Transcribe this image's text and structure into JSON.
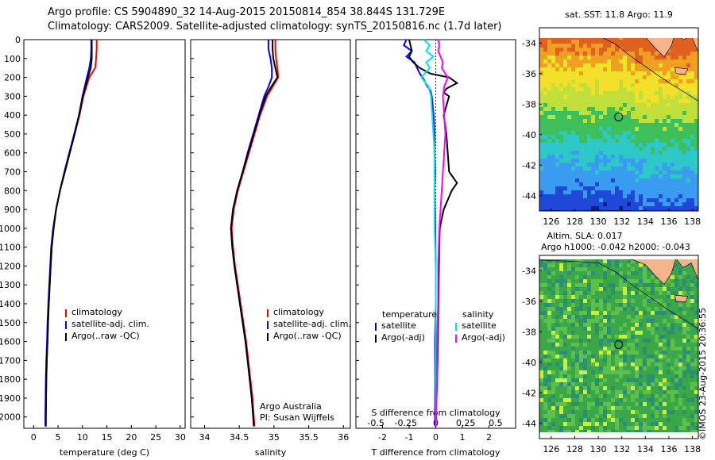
{
  "header": {
    "line1": "Argo profile: CS 5904890_32 14-Aug-2015 20150814_854 38.844S 131.729E",
    "line2": "Climatology: CARS2009. Satellite-adjusted climatology: synTS_20150816.nc (1.7d later)"
  },
  "colors": {
    "climatology": "#ff0000",
    "satellite": "#0000ff",
    "argo": "#000000",
    "satellite_s": "#00e6e6",
    "argo_s": "#ff00ff"
  },
  "chart_data": [
    {
      "type": "line",
      "panel": "temperature",
      "xlabel": "temperature (deg C)",
      "ylabel": "",
      "xlim": [
        -2,
        31
      ],
      "ylim": [
        2060,
        0
      ],
      "xticks": [
        0,
        5,
        10,
        15,
        20,
        25,
        30
      ],
      "yticks": [
        0,
        100,
        200,
        300,
        400,
        500,
        600,
        700,
        800,
        900,
        1000,
        1100,
        1200,
        1300,
        1400,
        1500,
        1600,
        1700,
        1800,
        1900,
        2000
      ],
      "legend": [
        "climatology",
        "satellite-adj. clim.",
        "Argo(..raw -QC)"
      ],
      "series": [
        {
          "name": "climatology",
          "depth": [
            0,
            50,
            100,
            150,
            200,
            300,
            400,
            500,
            600,
            700,
            800,
            900,
            1000,
            1100,
            1200,
            1300,
            1400,
            1500,
            1600,
            1700,
            1800,
            1900,
            2000,
            2050
          ],
          "values": [
            12.9,
            12.9,
            12.8,
            12.6,
            11.4,
            10.2,
            9.4,
            8.4,
            7.4,
            6.4,
            5.4,
            4.6,
            4.1,
            3.7,
            3.5,
            3.3,
            3.1,
            2.95,
            2.85,
            2.7,
            2.6,
            2.55,
            2.5,
            2.5
          ]
        },
        {
          "name": "satellite-adj. clim.",
          "depth": [
            0,
            50,
            100,
            150,
            200,
            300,
            400,
            500,
            600,
            700,
            800,
            900,
            1000,
            1100,
            1200,
            1300,
            1400,
            1500,
            1600,
            1700,
            1800,
            1900,
            2000,
            2050
          ],
          "values": [
            11.8,
            11.8,
            11.7,
            11.4,
            10.9,
            10.0,
            9.3,
            8.3,
            7.3,
            6.3,
            5.4,
            4.6,
            4.0,
            3.6,
            3.4,
            3.2,
            3.0,
            2.85,
            2.75,
            2.6,
            2.5,
            2.45,
            2.4,
            2.4
          ]
        },
        {
          "name": "Argo(..raw -QC)",
          "depth": [
            0,
            50,
            100,
            150,
            200,
            300,
            400,
            500,
            600,
            700,
            800,
            900,
            1000,
            1100,
            1200,
            1300,
            1400,
            1500,
            1600,
            1700,
            1800,
            1900,
            2000,
            2050
          ],
          "values": [
            11.9,
            11.9,
            11.9,
            11.7,
            11.1,
            10.1,
            9.3,
            8.4,
            7.4,
            6.4,
            5.4,
            4.6,
            4.1,
            3.7,
            3.5,
            3.3,
            3.1,
            2.95,
            2.85,
            2.7,
            2.6,
            2.55,
            2.5,
            2.5
          ]
        }
      ]
    },
    {
      "type": "line",
      "panel": "salinity",
      "xlabel": "salinity",
      "ylabel": "",
      "xlim": [
        33.8,
        36.1
      ],
      "ylim": [
        2060,
        0
      ],
      "xticks": [
        34,
        34.5,
        35,
        35.5,
        36
      ],
      "legend": [
        "climatology",
        "satellite-adj. clim.",
        "Argo(..raw -QC)"
      ],
      "annotation": [
        "Argo Australia",
        "PI: Susan Wijffels"
      ],
      "series": [
        {
          "name": "climatology",
          "depth": [
            0,
            50,
            100,
            150,
            200,
            250,
            300,
            400,
            500,
            600,
            700,
            800,
            900,
            1000,
            1100,
            1200,
            1300,
            1400,
            1500,
            1600,
            1700,
            1800,
            1900,
            2000,
            2050
          ],
          "values": [
            35.02,
            35.02,
            35.03,
            35.05,
            35.06,
            34.98,
            34.9,
            34.8,
            34.72,
            34.64,
            34.56,
            34.48,
            34.42,
            34.39,
            34.41,
            34.44,
            34.48,
            34.52,
            34.56,
            34.6,
            34.63,
            34.66,
            34.69,
            34.71,
            34.72
          ]
        },
        {
          "name": "satellite-adj. clim.",
          "depth": [
            0,
            50,
            100,
            150,
            200,
            250,
            300,
            400,
            500,
            600,
            700,
            800,
            900,
            1000,
            1100,
            1200,
            1300,
            1400,
            1500,
            1600,
            1700,
            1800,
            1900,
            2000,
            2050
          ],
          "values": [
            34.92,
            34.92,
            34.95,
            34.97,
            34.97,
            34.92,
            34.86,
            34.78,
            34.7,
            34.62,
            34.55,
            34.47,
            34.41,
            34.38,
            34.4,
            34.43,
            34.47,
            34.51,
            34.55,
            34.59,
            34.62,
            34.65,
            34.68,
            34.7,
            34.71
          ]
        },
        {
          "name": "Argo(..raw -QC)",
          "depth": [
            0,
            50,
            100,
            150,
            200,
            250,
            300,
            400,
            500,
            600,
            700,
            800,
            900,
            1000,
            1100,
            1200,
            1300,
            1400,
            1500,
            1600,
            1700,
            1800,
            1900,
            2000,
            2050
          ],
          "values": [
            34.98,
            34.98,
            34.99,
            35.02,
            35.05,
            34.96,
            34.88,
            34.79,
            34.71,
            34.63,
            34.55,
            34.47,
            34.41,
            34.38,
            34.4,
            34.43,
            34.47,
            34.51,
            34.55,
            34.59,
            34.62,
            34.65,
            34.68,
            34.7,
            34.71
          ]
        }
      ]
    },
    {
      "type": "line",
      "panel": "differences",
      "xlabel": "T difference from climatology",
      "xlabel_top": "S difference from climatology",
      "xlim": [
        -3,
        3
      ],
      "ylim": [
        2060,
        0
      ],
      "xticks": [
        -2,
        -1,
        0,
        1,
        2
      ],
      "xticks_s": [
        "-0.5",
        "-0.25",
        "0",
        "0.25",
        "0.5"
      ],
      "legend_title_t": "temperature",
      "legend_title_s": "salinity",
      "legend_t": [
        "satellite",
        "Argo(-adj)"
      ],
      "legend_s": [
        "satellite",
        "Argo(-adj)"
      ],
      "series": [
        {
          "name": "satellite",
          "kind": "T",
          "depth": [
            0,
            30,
            60,
            90,
            120,
            150,
            180,
            210,
            240,
            270,
            300,
            400,
            500,
            600,
            700,
            800,
            900,
            1000,
            1200,
            1400,
            1600,
            1800,
            2050
          ],
          "values": [
            -1.1,
            -1.2,
            -0.9,
            -1.1,
            -0.8,
            -0.7,
            -0.6,
            -0.45,
            -0.35,
            -0.2,
            -0.15,
            -0.08,
            -0.05,
            -0.05,
            -0.02,
            -0.05,
            -0.03,
            -0.02,
            0,
            0,
            -0.03,
            -0.02,
            -0.03
          ]
        },
        {
          "name": "Argo(-adj)",
          "kind": "T",
          "depth": [
            0,
            30,
            60,
            90,
            120,
            150,
            180,
            200,
            230,
            260,
            280,
            300,
            400,
            500,
            600,
            700,
            760,
            800,
            900,
            1000,
            1200,
            1400,
            1600,
            1800,
            2050
          ],
          "values": [
            -1.0,
            -0.95,
            -0.9,
            -1.0,
            -0.85,
            -0.6,
            -0.2,
            0.5,
            0.8,
            0.4,
            0.3,
            0.5,
            0.3,
            0.4,
            0.45,
            0.5,
            0.8,
            0.6,
            0.3,
            0.15,
            0.12,
            0.1,
            0.08,
            0.05,
            0.0
          ]
        },
        {
          "name": "satellite",
          "kind": "S",
          "depth": [
            0,
            30,
            60,
            90,
            120,
            150,
            200,
            250,
            300,
            400,
            500,
            600,
            800,
            1000,
            1200,
            1400,
            1600,
            1800,
            2050
          ],
          "values": [
            -0.1,
            -0.05,
            -0.08,
            -0.02,
            -0.08,
            -0.05,
            -0.12,
            -0.06,
            -0.04,
            -0.03,
            -0.02,
            -0.01,
            -0.01,
            -0.01,
            0,
            0,
            0,
            0,
            0
          ]
        },
        {
          "name": "Argo(-adj)",
          "kind": "S",
          "depth": [
            0,
            30,
            60,
            90,
            120,
            150,
            200,
            250,
            300,
            400,
            500,
            600,
            800,
            900,
            1000,
            1200,
            1400,
            1600,
            1800,
            2050
          ],
          "values": [
            0.02,
            0.03,
            0.02,
            0.04,
            0.06,
            0.05,
            0.1,
            0.07,
            0.06,
            0.07,
            0.08,
            0.07,
            0.05,
            0.04,
            0.03,
            0.02,
            0.02,
            0.01,
            0.01,
            0
          ]
        }
      ]
    },
    {
      "type": "heatmap",
      "panel": "sst_map",
      "title": "sat. SST: 11.8  Argo: 11.9",
      "xlim": [
        125,
        138.5
      ],
      "ylim": [
        -45,
        -33
      ],
      "xticks": [
        126,
        128,
        130,
        132,
        134,
        136,
        138
      ],
      "yticks": [
        -34,
        -36,
        -38,
        -40,
        -42,
        -44
      ],
      "marker": {
        "lon": 131.729,
        "lat": -38.844
      }
    },
    {
      "type": "heatmap",
      "panel": "sla_map",
      "title": "Altim. SLA: 0.017",
      "subtitle": "Argo h1000: -0.042 h2000: -0.043",
      "xlim": [
        125,
        138.5
      ],
      "ylim": [
        -45,
        -33
      ],
      "xticks": [
        126,
        128,
        130,
        132,
        134,
        136,
        138
      ],
      "yticks": [
        -34,
        -36,
        -38,
        -40,
        -42,
        -44
      ],
      "marker": {
        "lon": 131.729,
        "lat": -38.844
      }
    }
  ],
  "footer": {
    "stamp": "©IMOS 23-Aug-2015 20:36:55"
  }
}
